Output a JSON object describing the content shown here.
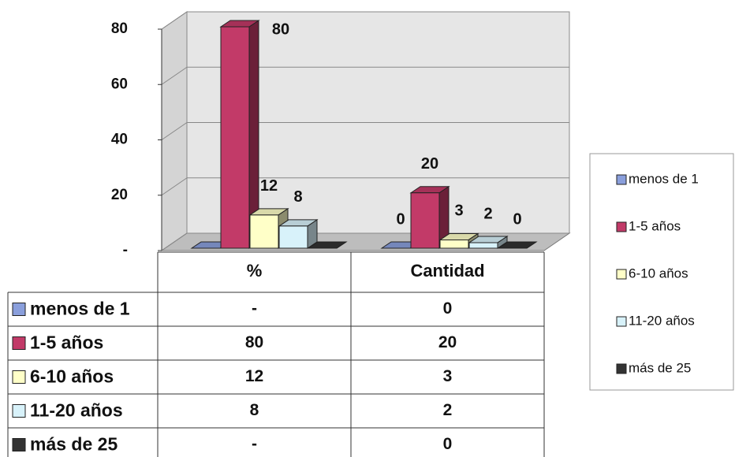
{
  "chart_data": {
    "type": "bar3d",
    "categories": [
      "%",
      "Cantidad"
    ],
    "series": [
      {
        "name": "menos de 1",
        "color": "#8a9fdc",
        "values": [
          0,
          0
        ],
        "value_labels": [
          "-",
          "0"
        ]
      },
      {
        "name": "1-5 años",
        "color": "#c23a68",
        "values": [
          80,
          20
        ]
      },
      {
        "name": "6-10 años",
        "color": "#ffffc8",
        "values": [
          12,
          3
        ]
      },
      {
        "name": "11-20 años",
        "color": "#d8f2fa",
        "values": [
          8,
          2
        ]
      },
      {
        "name": "más de 25",
        "color": "#333333",
        "values": [
          0,
          0
        ],
        "value_labels": [
          "-",
          "0"
        ]
      }
    ],
    "ylim": [
      0,
      80
    ],
    "yticks": [
      {
        "value": 0,
        "label": "-"
      },
      20,
      40,
      60,
      80
    ],
    "grid": true,
    "legend": "right",
    "data_table": true
  }
}
